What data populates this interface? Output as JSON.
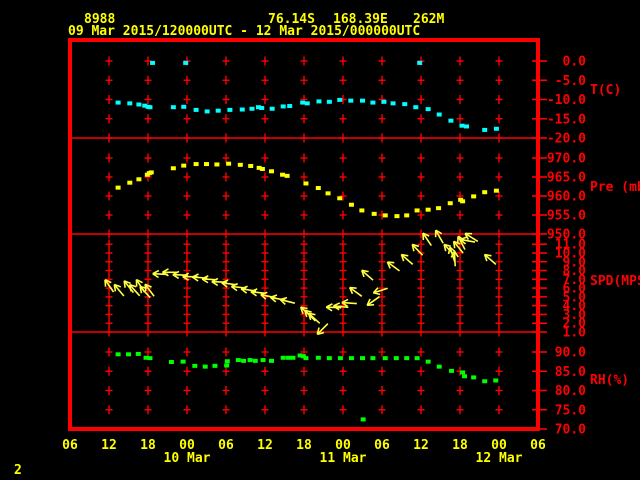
{
  "header": {
    "station_id": "8988",
    "latitude": "76.14S",
    "longitude": "168.39E",
    "elevation": "262M",
    "time_range": "09 Mar 2015/120000UTC - 12 Mar 2015/000000UTC"
  },
  "page_number": "2",
  "colors": {
    "background": "#000000",
    "frame": "#ff0000",
    "text_primary": "#ffff00",
    "temperature": "#00ffff",
    "pressure": "#ffff00",
    "wind": "#ffff44",
    "humidity": "#00ff00"
  },
  "chart_data": {
    "type": "scatter",
    "title": "meteogram time-series, 4 stacked panels",
    "x_axis": {
      "hour_labels": [
        "06",
        "12",
        "18",
        "00",
        "06",
        "12",
        "18",
        "00",
        "06",
        "12",
        "18",
        "00",
        "06"
      ],
      "hours_between_labels": 6,
      "date_labels": [
        {
          "text": "10 Mar",
          "hour": 18
        },
        {
          "text": "11 Mar",
          "hour": 42
        },
        {
          "text": "12 Mar",
          "hour": 66
        }
      ]
    },
    "panels": [
      {
        "name": "temperature",
        "ylabel": "T(C)",
        "tick_labels": [
          "0.0",
          "-5.0",
          "-10.0",
          "-15.0",
          "-20.0"
        ],
        "ylim": [
          -20,
          0
        ],
        "color": "#00ffff",
        "points": [
          [
            7.4,
            -10.8
          ],
          [
            9.2,
            -11.0
          ],
          [
            10.6,
            -11.3
          ],
          [
            11.5,
            -11.6
          ],
          [
            12.0,
            -11.9
          ],
          [
            12.3,
            -12.0
          ],
          [
            12.7,
            -0.5
          ],
          [
            15.9,
            -12.0
          ],
          [
            17.5,
            -11.9
          ],
          [
            17.8,
            -0.5
          ],
          [
            19.4,
            -12.7
          ],
          [
            21.1,
            -13.1
          ],
          [
            22.8,
            -12.9
          ],
          [
            24.6,
            -12.7
          ],
          [
            26.5,
            -12.6
          ],
          [
            28.0,
            -12.4
          ],
          [
            29.0,
            -12.0
          ],
          [
            29.5,
            -12.2
          ],
          [
            31.1,
            -12.4
          ],
          [
            32.8,
            -11.8
          ],
          [
            33.8,
            -11.7
          ],
          [
            35.8,
            -10.8
          ],
          [
            36.5,
            -11.0
          ],
          [
            38.3,
            -10.5
          ],
          [
            39.9,
            -10.6
          ],
          [
            41.5,
            -10.1
          ],
          [
            43.2,
            -10.3
          ],
          [
            45.0,
            -10.3
          ],
          [
            46.6,
            -10.8
          ],
          [
            48.3,
            -10.6
          ],
          [
            49.7,
            -11.0
          ],
          [
            51.5,
            -11.2
          ],
          [
            53.2,
            -12.0
          ],
          [
            53.8,
            -0.5
          ],
          [
            55.1,
            -12.5
          ],
          [
            56.8,
            -13.9
          ],
          [
            58.6,
            -15.5
          ],
          [
            60.3,
            -16.8
          ],
          [
            61.0,
            -17.0
          ],
          [
            63.8,
            -17.9
          ],
          [
            65.6,
            -17.6
          ]
        ]
      },
      {
        "name": "pressure",
        "ylabel": "Pre (mb)",
        "tick_labels": [
          "970.0",
          "965.0",
          "960.0",
          "955.0",
          "950.0"
        ],
        "ylim": [
          950,
          970
        ],
        "color": "#ffff00",
        "points": [
          [
            7.4,
            962.2
          ],
          [
            9.2,
            963.5
          ],
          [
            10.6,
            964.4
          ],
          [
            11.9,
            965.6
          ],
          [
            12.2,
            966.0
          ],
          [
            12.5,
            966.2
          ],
          [
            15.9,
            967.3
          ],
          [
            17.5,
            968.0
          ],
          [
            19.4,
            968.4
          ],
          [
            21.0,
            968.4
          ],
          [
            22.6,
            968.3
          ],
          [
            24.4,
            968.5
          ],
          [
            26.2,
            968.2
          ],
          [
            27.8,
            967.9
          ],
          [
            29.1,
            967.4
          ],
          [
            29.6,
            967.1
          ],
          [
            31.0,
            966.5
          ],
          [
            32.7,
            965.6
          ],
          [
            33.4,
            965.3
          ],
          [
            36.3,
            963.3
          ],
          [
            38.2,
            962.1
          ],
          [
            39.7,
            960.7
          ],
          [
            41.5,
            959.4
          ],
          [
            43.3,
            957.7
          ],
          [
            44.9,
            956.2
          ],
          [
            46.8,
            955.3
          ],
          [
            48.5,
            954.9
          ],
          [
            50.3,
            954.7
          ],
          [
            51.8,
            954.9
          ],
          [
            53.4,
            956.2
          ],
          [
            55.1,
            956.4
          ],
          [
            56.7,
            956.8
          ],
          [
            58.5,
            958.1
          ],
          [
            60.1,
            959.0
          ],
          [
            60.4,
            958.6
          ],
          [
            62.1,
            959.9
          ],
          [
            63.8,
            961.0
          ],
          [
            65.6,
            961.4
          ]
        ]
      },
      {
        "name": "wind_speed",
        "ylabel": "SPD(MPS)",
        "tick_labels": [
          "11.0",
          "10.0",
          "9.0",
          "8.0",
          "7.0",
          "6.0",
          "5.0",
          "4.0",
          "3.0",
          "2.0",
          "1.0"
        ],
        "ylim": [
          1,
          11
        ],
        "color": "#ffff44",
        "arrows_format": "[hours, speed_mps, pointing_angle_deg_cw_from_east]",
        "arrows": [
          [
            6.0,
            6.3,
            235
          ],
          [
            7.5,
            5.8,
            230
          ],
          [
            9.0,
            6.2,
            232
          ],
          [
            9.9,
            5.8,
            228
          ],
          [
            10.8,
            6.3,
            237
          ],
          [
            11.5,
            5.6,
            228
          ],
          [
            12.2,
            5.8,
            233
          ],
          [
            13.8,
            7.6,
            183
          ],
          [
            15.3,
            7.8,
            180
          ],
          [
            16.9,
            7.5,
            182
          ],
          [
            18.4,
            7.3,
            181
          ],
          [
            19.9,
            7.2,
            184
          ],
          [
            21.4,
            7.0,
            183
          ],
          [
            22.9,
            6.7,
            182
          ],
          [
            24.4,
            6.5,
            188
          ],
          [
            25.9,
            6.1,
            186
          ],
          [
            27.4,
            5.8,
            188
          ],
          [
            28.9,
            5.5,
            186
          ],
          [
            30.4,
            5.1,
            192
          ],
          [
            31.9,
            4.8,
            190
          ],
          [
            33.4,
            4.5,
            194
          ],
          [
            36.3,
            3.3,
            222
          ],
          [
            36.9,
            2.9,
            226
          ],
          [
            37.5,
            2.6,
            222
          ],
          [
            38.8,
            1.3,
            135
          ],
          [
            40.5,
            3.8,
            183
          ],
          [
            41.6,
            3.9,
            186
          ],
          [
            42.9,
            4.3,
            184
          ],
          [
            43.9,
            5.6,
            216
          ],
          [
            45.7,
            7.5,
            221
          ],
          [
            46.6,
            4.5,
            145
          ],
          [
            47.7,
            5.7,
            162
          ],
          [
            49.7,
            8.5,
            216
          ],
          [
            51.8,
            9.3,
            221
          ],
          [
            53.4,
            10.4,
            226
          ],
          [
            54.9,
            11.6,
            236
          ],
          [
            56.8,
            11.9,
            240
          ],
          [
            58.3,
            10.4,
            226
          ],
          [
            58.8,
            9.9,
            252
          ],
          [
            59.2,
            9.4,
            267
          ],
          [
            59.7,
            10.7,
            231
          ],
          [
            60.2,
            11.2,
            243
          ],
          [
            61.1,
            11.4,
            190
          ],
          [
            61.7,
            11.8,
            212
          ],
          [
            64.6,
            9.3,
            221
          ]
        ]
      },
      {
        "name": "relative_humidity",
        "ylabel": "RH(%)",
        "tick_labels": [
          "90.0",
          "85.0",
          "80.0",
          "75.0",
          "70.0"
        ],
        "ylim": [
          70,
          90
        ],
        "color": "#00ff00",
        "points": [
          [
            7.4,
            89.4
          ],
          [
            9.0,
            89.4
          ],
          [
            10.5,
            89.5
          ],
          [
            11.7,
            88.5
          ],
          [
            12.3,
            88.4
          ],
          [
            15.6,
            87.4
          ],
          [
            17.4,
            87.5
          ],
          [
            19.2,
            86.4
          ],
          [
            20.8,
            86.2
          ],
          [
            22.3,
            86.4
          ],
          [
            24.1,
            86.5
          ],
          [
            24.2,
            87.6
          ],
          [
            25.9,
            87.9
          ],
          [
            26.7,
            87.7
          ],
          [
            27.7,
            87.9
          ],
          [
            28.5,
            87.7
          ],
          [
            29.7,
            87.9
          ],
          [
            31.0,
            87.7
          ],
          [
            32.8,
            88.5
          ],
          [
            33.6,
            88.5
          ],
          [
            34.3,
            88.5
          ],
          [
            35.4,
            89.1
          ],
          [
            35.9,
            88.9
          ],
          [
            36.3,
            88.4
          ],
          [
            38.2,
            88.5
          ],
          [
            39.9,
            88.4
          ],
          [
            41.6,
            88.4
          ],
          [
            43.3,
            88.4
          ],
          [
            45.0,
            88.4
          ],
          [
            45.1,
            72.5
          ],
          [
            46.6,
            88.4
          ],
          [
            48.5,
            88.4
          ],
          [
            50.2,
            88.4
          ],
          [
            51.8,
            88.4
          ],
          [
            53.4,
            88.4
          ],
          [
            55.1,
            87.5
          ],
          [
            56.8,
            86.2
          ],
          [
            58.7,
            85.1
          ],
          [
            60.4,
            84.7
          ],
          [
            60.7,
            83.7
          ],
          [
            62.1,
            83.4
          ],
          [
            63.8,
            82.4
          ],
          [
            65.5,
            82.6
          ]
        ]
      }
    ]
  }
}
